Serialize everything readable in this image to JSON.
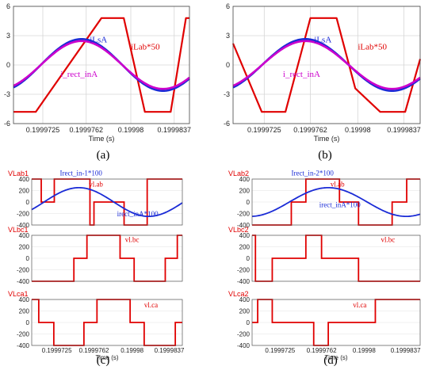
{
  "panel_labels": [
    "(a)",
    "(b)",
    "(c)",
    "(d)"
  ],
  "chart_data": [
    {
      "id": "a",
      "type": "line",
      "xlabel": "Time (s)",
      "xlim": [
        0.19997,
        0.199985
      ],
      "xticks": [
        "0.1999725",
        "0.1999762",
        "0.19998",
        "0.1999837"
      ],
      "xtick_values": [
        0.1999725,
        0.1999762,
        0.19998,
        0.1999837
      ],
      "ylim": [
        -6,
        6
      ],
      "yticks": [
        6,
        3,
        0,
        -3,
        -6
      ],
      "grid": true,
      "annotations": [
        {
          "text": "iLsA",
          "color": "#1a2bd6",
          "x": 0.1999765,
          "y": 2.3
        },
        {
          "text": "iLab*50",
          "color": "#e00000",
          "x": 0.19998,
          "y": 1.6
        },
        {
          "text": "i_rect_inA",
          "color": "#cc00cc",
          "x": 0.199974,
          "y": -1.2
        }
      ],
      "series": [
        {
          "color": "#e00000",
          "x": [
            0.19997,
            0.1999719,
            0.1999775,
            0.1999794,
            0.1999812,
            0.1999834,
            0.1999847,
            0.199985
          ],
          "y": [
            -4.8,
            -4.8,
            4.8,
            4.8,
            -4.8,
            -4.8,
            4.8,
            4.8
          ]
        },
        {
          "color": "#1a2bd6",
          "wave": "sine",
          "amp": 2.65,
          "period": 1.39e-05,
          "peak_x": 0.1999758
        },
        {
          "color": "#cc00cc",
          "wave": "sine",
          "amp": 2.45,
          "period": 1.39e-05,
          "peak_x": 0.1999758
        }
      ]
    },
    {
      "id": "b",
      "type": "line",
      "xlabel": "Time (s)",
      "xlim": [
        0.19997,
        0.199985
      ],
      "xticks": [
        "0.1999725",
        "0.1999762",
        "0.19998",
        "0.1999837"
      ],
      "xtick_values": [
        0.1999725,
        0.1999762,
        0.19998,
        0.1999837
      ],
      "ylim": [
        -6,
        6
      ],
      "yticks": [
        6,
        3,
        0,
        -3,
        -6
      ],
      "grid": true,
      "annotations": [
        {
          "text": "iLsA",
          "color": "#1a2bd6",
          "x": 0.1999765,
          "y": 2.3
        },
        {
          "text": "iLab*50",
          "color": "#e00000",
          "x": 0.19998,
          "y": 1.6
        },
        {
          "text": "i_rect_inA",
          "color": "#cc00cc",
          "x": 0.199974,
          "y": -1.2
        }
      ],
      "series": [
        {
          "color": "#e00000",
          "x": [
            0.19997,
            0.1999723,
            0.1999742,
            0.1999762,
            0.1999783,
            0.1999798,
            0.1999818,
            0.1999838,
            0.199985
          ],
          "y": [
            2.2,
            -4.8,
            -4.8,
            4.8,
            4.8,
            -2.4,
            -4.8,
            -4.8,
            0.6
          ]
        },
        {
          "color": "#1a2bd6",
          "wave": "sine",
          "amp": 2.65,
          "period": 1.39e-05,
          "peak_x": 0.1999758
        },
        {
          "color": "#cc00cc",
          "wave": "sine",
          "amp": 2.45,
          "period": 1.39e-05,
          "peak_x": 0.1999758
        }
      ]
    },
    {
      "id": "c",
      "type": "line",
      "xlabel": "Time (s)",
      "xlim": [
        0.19997,
        0.199985
      ],
      "xticks": [
        "0.1999725",
        "0.1999762",
        "0.19998",
        "0.1999837"
      ],
      "xtick_values": [
        0.1999725,
        0.1999762,
        0.19998,
        0.1999837
      ],
      "subplots": [
        {
          "title": "VLab1",
          "ylim": [
            -400,
            400
          ],
          "yticks": [
            400,
            200,
            0,
            -200,
            -400
          ],
          "annotations": [
            {
              "text": "Irect_in-1*100",
              "color": "#1a2bd6",
              "x": 0.1999728,
              "y": 460
            },
            {
              "text": "vl.ab",
              "color": "#e00000",
              "x": 0.1999757,
              "y": 270
            },
            {
              "text": "irect_inA*100",
              "color": "#1a2bd6",
              "x": 0.1999785,
              "y": -250
            }
          ],
          "series": [
            {
              "color": "#e00000",
              "x": [
                0.19997,
                0.19997095,
                0.19997095,
                0.19997225,
                0.19997225,
                0.1999758,
                0.1999758,
                0.1999762,
                0.1999762,
                0.1999792,
                0.1999792,
                0.1999815,
                0.1999815,
                0.199985
              ],
              "y": [
                400,
                400,
                0,
                0,
                400,
                400,
                -400,
                -400,
                0,
                0,
                -400,
                -400,
                400,
                400
              ]
            },
            {
              "color": "#1a2bd6",
              "wave": "sine",
              "amp": 250,
              "period": 1.39e-05,
              "peak_x": 0.1999747
            }
          ]
        },
        {
          "title": "VLbc1",
          "ylim": [
            -400,
            400
          ],
          "yticks": [
            400,
            200,
            0,
            -200,
            -400
          ],
          "annotations": [
            {
              "text": "vl.bc",
              "color": "#e00000",
              "x": 0.1999793,
              "y": 280
            }
          ],
          "series": [
            {
              "color": "#e00000",
              "x": [
                0.19997,
                0.1999742,
                0.1999742,
                0.1999755,
                0.1999755,
                0.1999788,
                0.1999788,
                0.1999802,
                0.1999802,
                0.1999833,
                0.1999833,
                0.1999845,
                0.1999845,
                0.199985
              ],
              "y": [
                -400,
                -400,
                0,
                0,
                400,
                400,
                0,
                0,
                -400,
                -400,
                0,
                0,
                400,
                400
              ]
            }
          ]
        },
        {
          "title": "VLca1",
          "ylim": [
            -400,
            400
          ],
          "yticks": [
            400,
            200,
            0,
            -200,
            -400
          ],
          "annotations": [
            {
              "text": "vl.ca",
              "color": "#e00000",
              "x": 0.1999812,
              "y": 260
            }
          ],
          "series": [
            {
              "color": "#e00000",
              "x": [
                0.19997,
                0.1999707,
                0.1999707,
                0.1999722,
                0.1999722,
                0.1999752,
                0.1999752,
                0.1999765,
                0.1999765,
                0.1999798,
                0.1999798,
                0.1999812,
                0.1999812,
                0.1999843,
                0.1999843,
                0.199985
              ],
              "y": [
                400,
                400,
                0,
                0,
                -400,
                -400,
                0,
                0,
                400,
                400,
                0,
                0,
                -400,
                -400,
                0,
                0
              ]
            }
          ]
        }
      ]
    },
    {
      "id": "d",
      "type": "line",
      "xlabel": "Time (s)",
      "xlim": [
        0.19997,
        0.199985
      ],
      "xticks": [
        "0.1999725",
        "0.1999762",
        "0.19998",
        "0.1999837"
      ],
      "xtick_values": [
        0.1999725,
        0.1999762,
        0.19998,
        0.1999837
      ],
      "subplots": [
        {
          "title": "VLab2",
          "ylim": [
            -400,
            400
          ],
          "yticks": [
            400,
            200,
            0,
            -200,
            -400
          ],
          "annotations": [
            {
              "text": "Irect_in-2*100",
              "color": "#1a2bd6",
              "x": 0.1999735,
              "y": 460
            },
            {
              "text": "vl.ab",
              "color": "#e00000",
              "x": 0.199977,
              "y": 270
            },
            {
              "text": "irect_inA*100",
              "color": "#1a2bd6",
              "x": 0.199976,
              "y": -90
            }
          ],
          "series": [
            {
              "color": "#e00000",
              "x": [
                0.19997,
                0.1999735,
                0.1999735,
                0.1999748,
                0.1999748,
                0.1999778,
                0.1999778,
                0.1999795,
                0.1999795,
                0.1999825,
                0.1999825,
                0.1999838,
                0.1999838,
                0.199985
              ],
              "y": [
                -400,
                -400,
                0,
                0,
                400,
                400,
                0,
                0,
                -400,
                -400,
                0,
                0,
                400,
                400
              ]
            },
            {
              "color": "#1a2bd6",
              "wave": "sine",
              "amp": 250,
              "period": 1.39e-05,
              "peak_x": 0.1999768
            }
          ]
        },
        {
          "title": "VLbc2",
          "ylim": [
            -400,
            400
          ],
          "yticks": [
            400,
            200,
            0,
            -200,
            -400
          ],
          "annotations": [
            {
              "text": "vl.bc",
              "color": "#e00000",
              "x": 0.1999815,
              "y": 280
            }
          ],
          "series": [
            {
              "color": "#e00000",
              "x": [
                0.19997,
                0.1999703,
                0.1999703,
                0.1999718,
                0.1999718,
                0.1999748,
                0.1999748,
                0.1999762,
                0.1999762,
                0.1999795,
                0.1999795,
                0.1999808,
                0.1999808,
                0.199985
              ],
              "y": [
                400,
                400,
                -400,
                -400,
                0,
                0,
                400,
                400,
                0,
                0,
                -400,
                -400,
                -400,
                -400
              ]
            }
          ]
        },
        {
          "title": "VLca2",
          "ylim": [
            -400,
            400
          ],
          "yticks": [
            400,
            200,
            0,
            -200,
            -400
          ],
          "annotations": [
            {
              "text": "vl.ca",
              "color": "#e00000",
              "x": 0.199979,
              "y": 260
            }
          ],
          "series": [
            {
              "color": "#e00000",
              "x": [
                0.19997,
                0.1999705,
                0.1999705,
                0.1999718,
                0.1999718,
                0.1999755,
                0.1999755,
                0.1999768,
                0.1999768,
                0.199981,
                0.199981,
                0.199985
              ],
              "y": [
                0,
                0,
                400,
                400,
                0,
                0,
                -400,
                -400,
                0,
                0,
                400,
                400
              ]
            }
          ]
        }
      ]
    }
  ]
}
